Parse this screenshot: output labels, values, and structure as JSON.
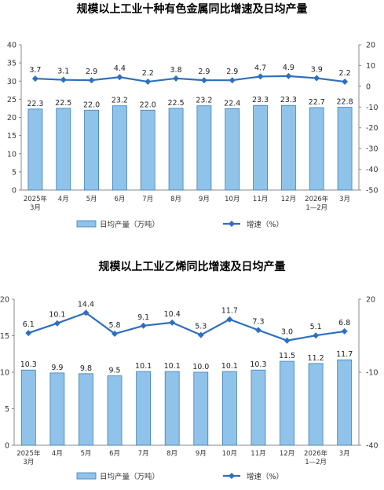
{
  "chart_data": [
    {
      "type": "bar",
      "title": "规模以上工业十种有色金属同比增速及日均产量",
      "categories": [
        [
          "2025年",
          "3月"
        ],
        [
          "4月"
        ],
        [
          "5月"
        ],
        [
          "6月"
        ],
        [
          "7月"
        ],
        [
          "8月"
        ],
        [
          "9月"
        ],
        [
          "10月"
        ],
        [
          "11月"
        ],
        [
          "12月"
        ],
        [
          "2026年",
          "1—2月"
        ],
        [
          "3月"
        ]
      ],
      "series": [
        {
          "name": "日均产量（万吨）",
          "type": "bar",
          "axis": "left",
          "values": [
            22.3,
            22.5,
            22.0,
            23.2,
            22.0,
            22.5,
            23.2,
            22.4,
            23.3,
            23.3,
            22.7,
            22.8
          ],
          "labels": [
            "22.3",
            "22.5",
            "22.0",
            "23.2",
            "22.0",
            "22.5",
            "23.2",
            "22.4",
            "23.3",
            "23.3",
            "22.7",
            "22.8"
          ]
        },
        {
          "name": "增速（%）",
          "type": "line",
          "axis": "right",
          "values": [
            3.7,
            3.1,
            2.9,
            4.4,
            2.2,
            3.8,
            2.9,
            2.9,
            4.7,
            4.9,
            3.9,
            2.2
          ],
          "labels": [
            "3.7",
            "3.1",
            "2.9",
            "4.4",
            "2.2",
            "3.8",
            "2.9",
            "2.9",
            "4.7",
            "4.9",
            "3.9",
            "2.2"
          ]
        }
      ],
      "ylim_left": [
        0,
        40
      ],
      "yticks_left": [
        "0",
        "5",
        "10",
        "15",
        "20",
        "25",
        "30",
        "35",
        "40"
      ],
      "ylim_right": [
        -50,
        20
      ],
      "yticks_right": [
        "-50",
        "-40",
        "-30",
        "-20",
        "-10",
        "0",
        "10",
        "20"
      ],
      "legend_position": "bottom",
      "colors": {
        "bar_fill": "#8FC3EA",
        "bar_stroke": "#3C7FB9",
        "line": "#2E6FBF"
      }
    },
    {
      "type": "bar",
      "title": "规模以上工业乙烯同比增速及日均产量",
      "categories": [
        [
          "2025年",
          "3月"
        ],
        [
          "4月"
        ],
        [
          "5月"
        ],
        [
          "6月"
        ],
        [
          "7月"
        ],
        [
          "8月"
        ],
        [
          "9月"
        ],
        [
          "10月"
        ],
        [
          "11月"
        ],
        [
          "12月"
        ],
        [
          "2026年",
          "1—2月"
        ],
        [
          "3月"
        ]
      ],
      "series": [
        {
          "name": "日均产量（万吨）",
          "type": "bar",
          "axis": "left",
          "values": [
            10.3,
            9.9,
            9.8,
            9.5,
            10.1,
            10.1,
            10.0,
            10.1,
            10.3,
            11.5,
            11.2,
            11.7
          ],
          "labels": [
            "10.3",
            "9.9",
            "9.8",
            "9.5",
            "10.1",
            "10.1",
            "10.0",
            "10.1",
            "10.3",
            "11.5",
            "11.2",
            "11.7"
          ]
        },
        {
          "name": "增速（%）",
          "type": "line",
          "axis": "right",
          "values": [
            6.1,
            10.1,
            14.4,
            5.8,
            9.1,
            10.4,
            5.3,
            11.7,
            7.3,
            3.0,
            5.1,
            6.8
          ],
          "labels": [
            "6.1",
            "10.1",
            "14.4",
            "5.8",
            "9.1",
            "10.4",
            "5.3",
            "11.7",
            "7.3",
            "3.0",
            "5.1",
            "6.8"
          ]
        }
      ],
      "ylim_left": [
        0,
        20
      ],
      "yticks_left": [
        "0",
        "5",
        "10",
        "15",
        "20"
      ],
      "ylim_right": [
        -40,
        20
      ],
      "yticks_right": [
        "-40",
        "-10",
        "20"
      ],
      "legend_position": "bottom",
      "colors": {
        "bar_fill": "#8FC3EA",
        "bar_stroke": "#3C7FB9",
        "line": "#2E6FBF"
      }
    }
  ]
}
